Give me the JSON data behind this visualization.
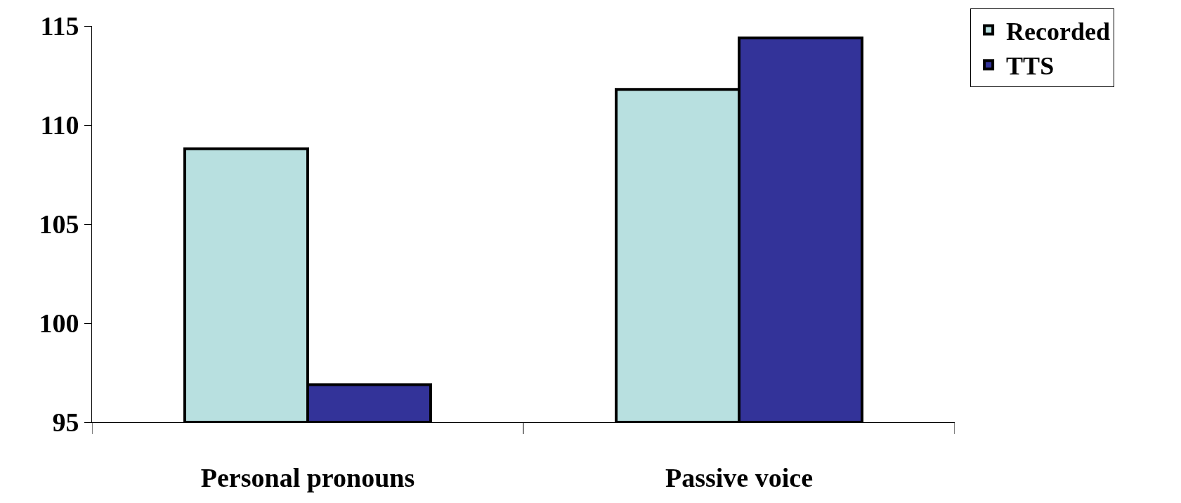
{
  "chart_data": {
    "type": "bar",
    "categories": [
      "Personal pronouns",
      "Passive voice"
    ],
    "series": [
      {
        "name": "Recorded",
        "color": "#b8e0e0",
        "values": [
          108.8,
          111.8
        ]
      },
      {
        "name": "TTS",
        "color": "#333399",
        "values": [
          96.9,
          114.4
        ]
      }
    ],
    "ylim": [
      95,
      115
    ],
    "yticks": [
      95,
      100,
      105,
      110,
      115
    ],
    "legend": "top right"
  }
}
